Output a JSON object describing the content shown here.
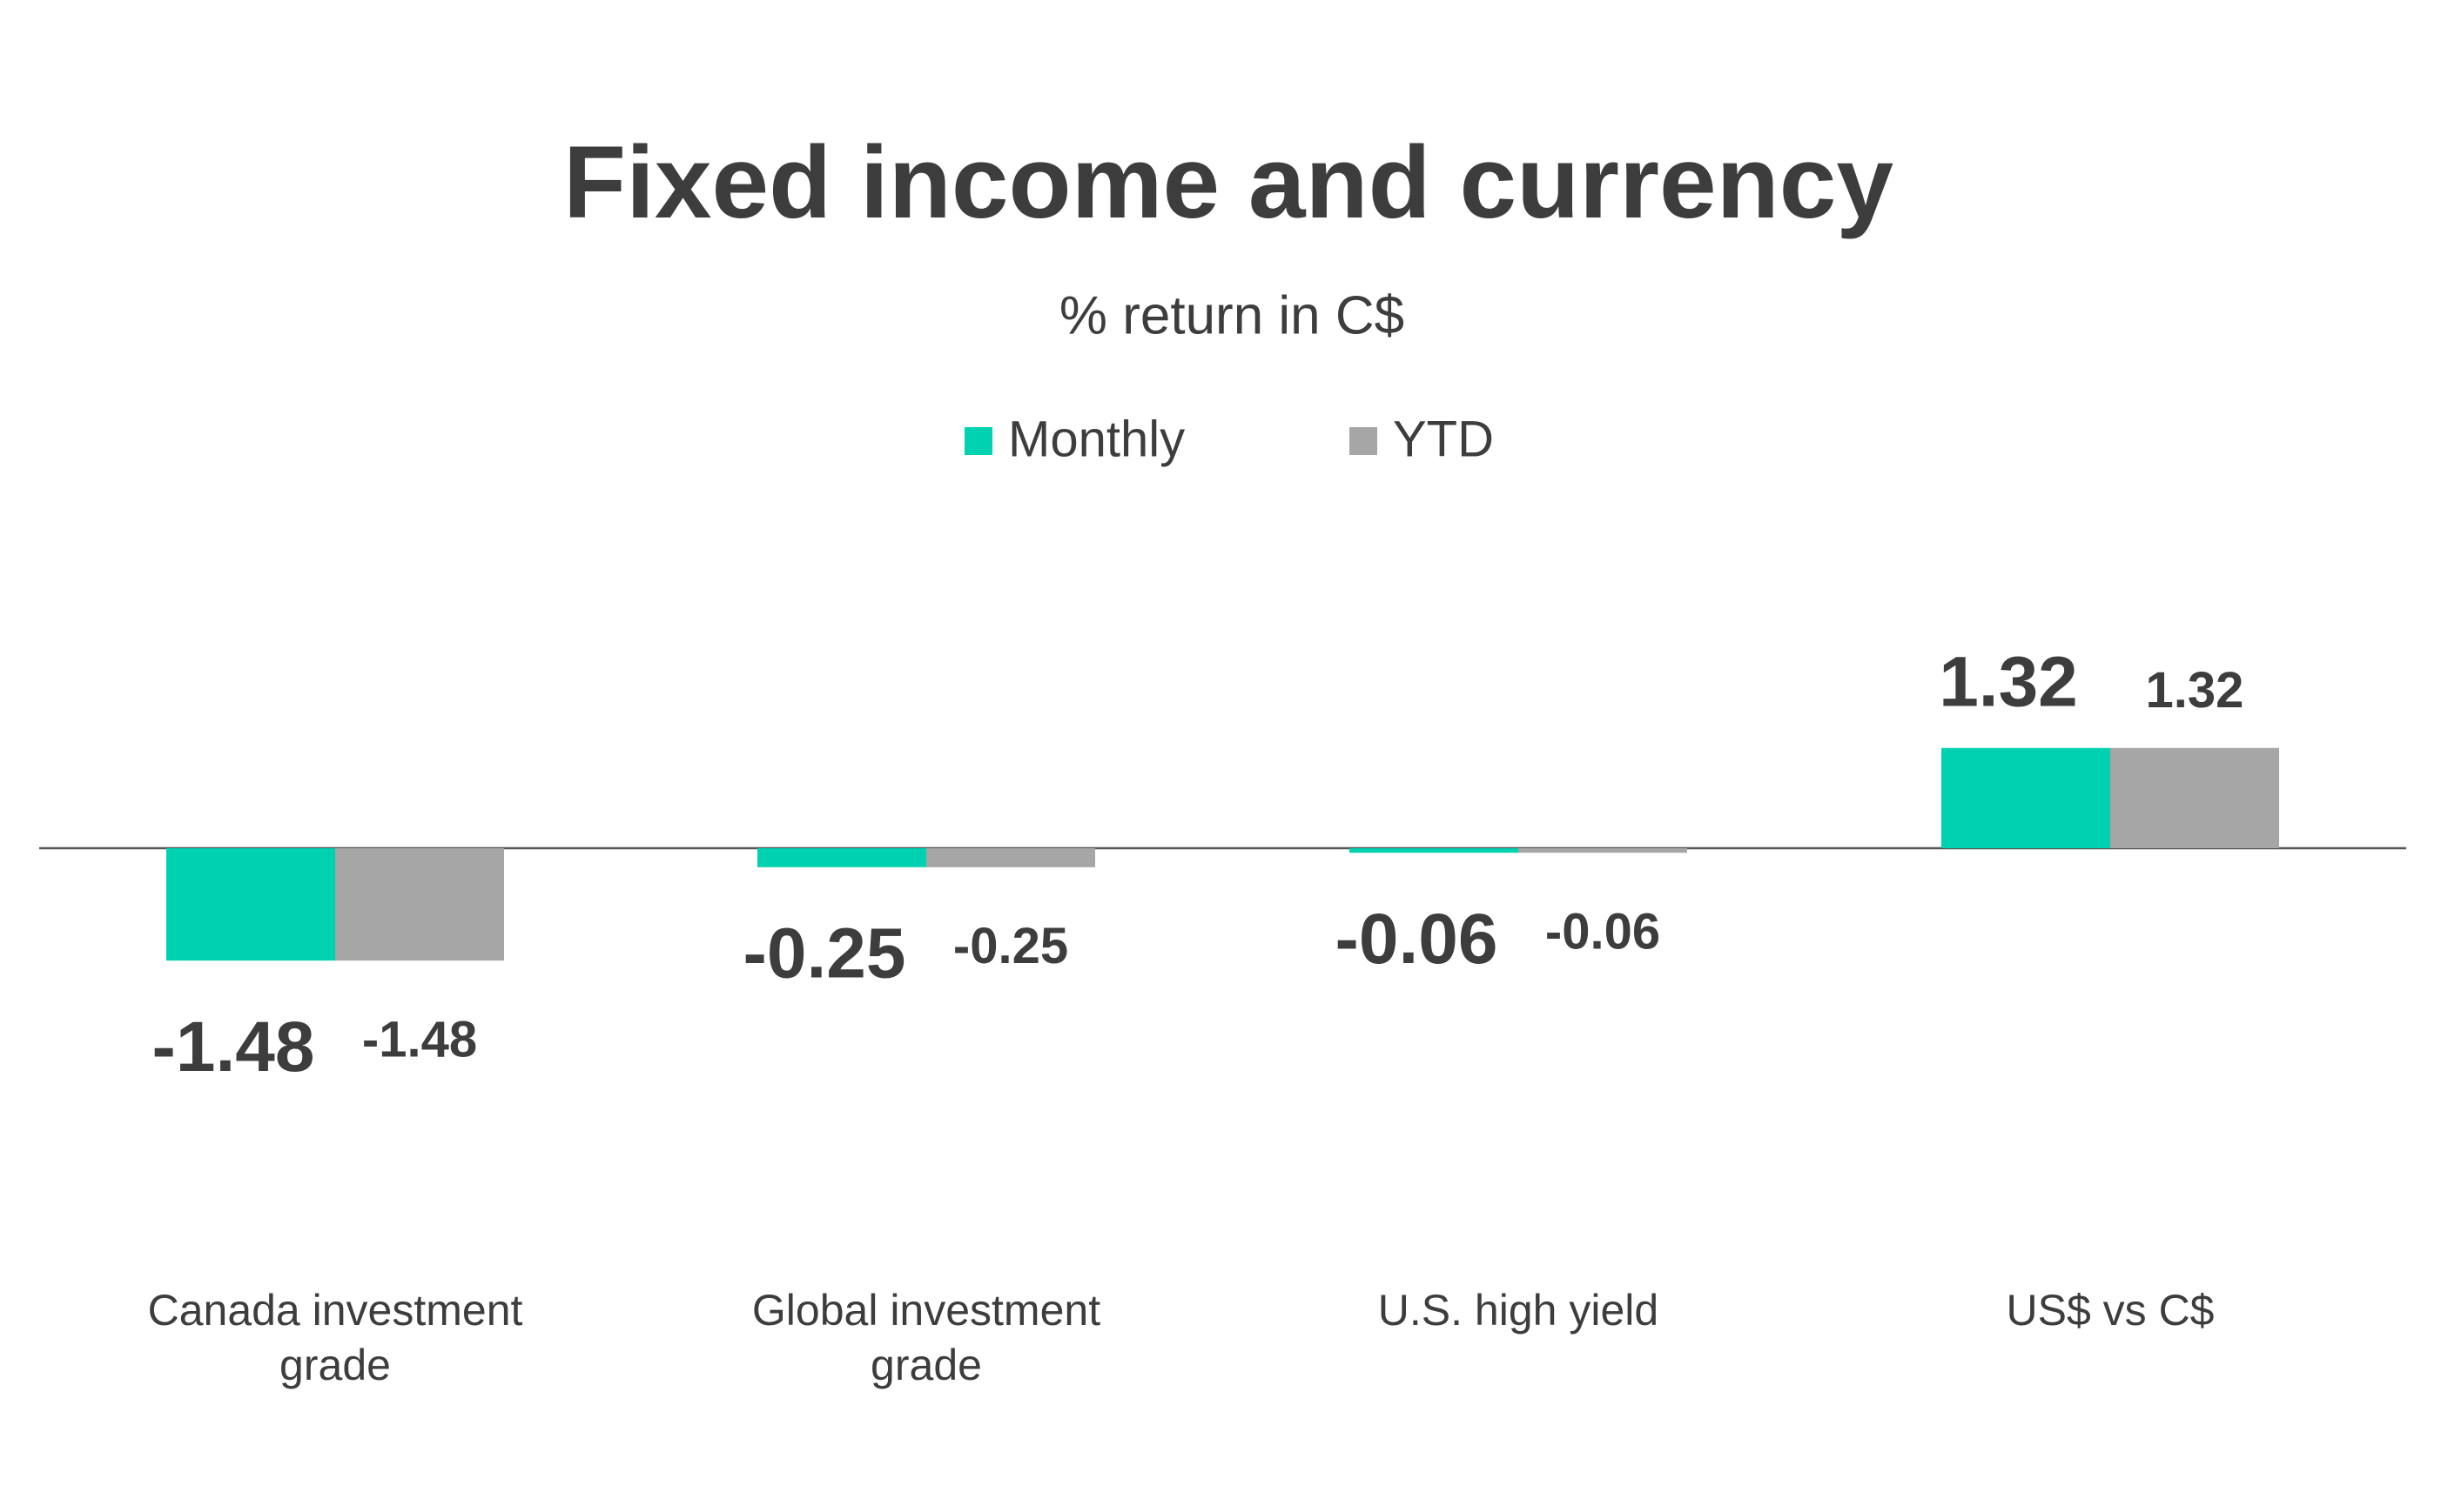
{
  "chart_data": {
    "type": "bar",
    "title": "Fixed income and currency",
    "subtitle": "% return in C$",
    "categories": [
      "Canada investment grade",
      "Global investment grade",
      "U.S. high yield",
      "US$ vs C$"
    ],
    "series": [
      {
        "name": "Monthly",
        "color": "#00d1b0",
        "values": [
          -1.48,
          -0.25,
          -0.06,
          1.32
        ]
      },
      {
        "name": "YTD",
        "color": "#a6a6a6",
        "values": [
          -1.48,
          -0.25,
          -0.06,
          1.32
        ]
      }
    ],
    "legend": "top",
    "grid": false
  }
}
